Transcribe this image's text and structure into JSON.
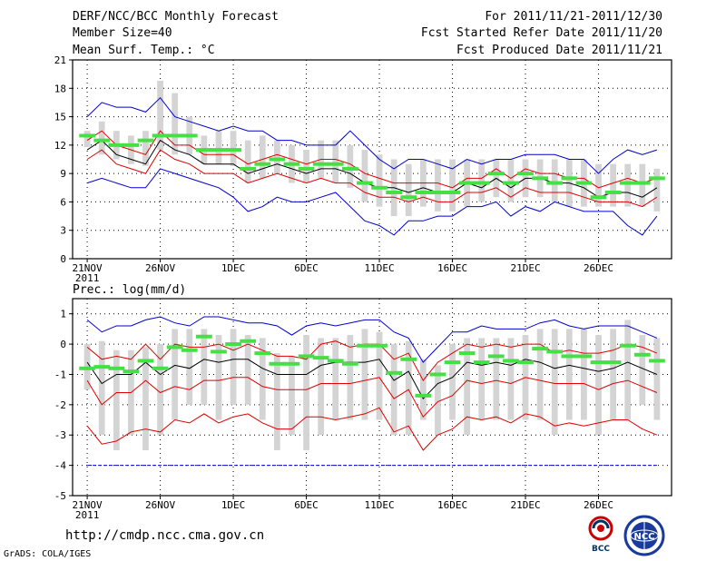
{
  "header": {
    "title": "DERF/NCC/BCC Monthly Forecast",
    "member_size": "Member Size=40",
    "variable": "Mean Surf. Temp.: °C",
    "period": "For 2011/11/21-2011/12/30",
    "started": "Fcst Started Refer Date 2011/11/20",
    "produced": "Fcst Produced Date 2011/11/21"
  },
  "footer": {
    "url": "http://cmdp.ncc.cma.gov.cn",
    "credit": "GrADS: COLA/IGES",
    "logo_left_text": "BCC",
    "logo_right_text": "NCC"
  },
  "colors": {
    "box": "#d4d4d4",
    "median": "#44e044",
    "mean": "#000000",
    "std": "#e00000",
    "extreme": "#0000d0",
    "grid": "#000000"
  },
  "chart_data": [
    {
      "type": "box",
      "title": "Mean Surf. Temp.: °C",
      "ylim": [
        0,
        21
      ],
      "yticks": [
        0,
        3,
        6,
        9,
        12,
        15,
        18,
        21
      ],
      "xticks": [
        {
          "day": 1,
          "label": "21NOV",
          "sub": "2011"
        },
        {
          "day": 6,
          "label": "26NOV",
          "sub": ""
        },
        {
          "day": 11,
          "label": "1DEC",
          "sub": ""
        },
        {
          "day": 16,
          "label": "6DEC",
          "sub": ""
        },
        {
          "day": 21,
          "label": "11DEC",
          "sub": ""
        },
        {
          "day": 26,
          "label": "16DEC",
          "sub": ""
        },
        {
          "day": 31,
          "label": "21DEC",
          "sub": ""
        },
        {
          "day": 36,
          "label": "26DEC",
          "sub": ""
        }
      ],
      "days": [
        1,
        2,
        3,
        4,
        5,
        6,
        7,
        8,
        9,
        10,
        11,
        12,
        13,
        14,
        15,
        16,
        17,
        18,
        19,
        20,
        21,
        22,
        23,
        24,
        25,
        26,
        27,
        28,
        29,
        30,
        31,
        32,
        33,
        34,
        35,
        36,
        37,
        38,
        39,
        40
      ],
      "box_low": [
        11.8,
        11.0,
        10.5,
        10.0,
        9.8,
        11.5,
        11.0,
        11.0,
        10.0,
        10.0,
        9.8,
        8.0,
        8.5,
        9.0,
        8.0,
        8.0,
        8.5,
        8.0,
        7.5,
        6.0,
        5.5,
        4.5,
        4.5,
        5.5,
        5.0,
        5.0,
        5.5,
        6.0,
        6.5,
        6.0,
        6.5,
        6.5,
        6.0,
        5.5,
        5.5,
        5.5,
        5.5,
        5.5,
        5.5,
        5.0
      ],
      "box_high": [
        13.5,
        14.5,
        13.5,
        13.0,
        13.5,
        18.8,
        17.5,
        15.0,
        13.0,
        13.5,
        13.5,
        12.5,
        13.0,
        12.5,
        12.0,
        11.5,
        12.5,
        12.5,
        12.0,
        11.5,
        11.0,
        10.5,
        10.0,
        10.5,
        10.5,
        10.5,
        10.5,
        10.5,
        10.5,
        10.5,
        10.5,
        10.5,
        10.5,
        10.5,
        10.5,
        10.0,
        10.0,
        10.0,
        10.0,
        9.5
      ],
      "median": [
        13.0,
        12.5,
        12.0,
        12.0,
        12.5,
        13.0,
        13.0,
        13.0,
        11.5,
        11.5,
        11.5,
        9.5,
        10.0,
        10.5,
        10.0,
        9.5,
        10.0,
        10.0,
        9.5,
        8.0,
        7.5,
        7.0,
        6.5,
        7.0,
        7.0,
        7.0,
        8.0,
        8.0,
        9.0,
        8.0,
        9.0,
        8.5,
        8.0,
        8.5,
        8.0,
        6.5,
        7.0,
        8.0,
        8.0,
        8.5
      ],
      "series": [
        {
          "name": "max",
          "role": "extreme",
          "values": [
            15.0,
            16.5,
            16.0,
            16.0,
            15.5,
            17.0,
            15.0,
            14.5,
            14.0,
            13.5,
            14.0,
            13.5,
            13.5,
            12.5,
            12.5,
            12.0,
            12.0,
            12.0,
            13.5,
            12.0,
            10.5,
            9.5,
            10.5,
            10.5,
            10.0,
            9.5,
            10.5,
            10.0,
            10.5,
            10.5,
            11.0,
            11.0,
            11.0,
            10.5,
            10.5,
            9.0,
            10.5,
            11.5,
            11.0,
            11.5
          ]
        },
        {
          "name": "mean+std",
          "role": "std",
          "values": [
            12.5,
            13.5,
            12.0,
            11.5,
            11.0,
            13.5,
            12.0,
            12.0,
            11.0,
            11.0,
            11.0,
            10.0,
            10.5,
            11.0,
            10.5,
            10.0,
            10.5,
            10.5,
            10.0,
            9.0,
            8.5,
            8.0,
            8.0,
            8.0,
            8.0,
            7.5,
            8.5,
            8.5,
            9.5,
            8.5,
            9.5,
            9.0,
            9.0,
            8.5,
            8.5,
            7.5,
            8.0,
            8.5,
            8.0,
            8.5
          ]
        },
        {
          "name": "mean",
          "role": "mean",
          "values": [
            11.5,
            12.5,
            11.0,
            10.5,
            10.0,
            12.5,
            11.5,
            11.0,
            10.0,
            10.0,
            10.0,
            9.0,
            9.5,
            10.0,
            9.5,
            9.0,
            9.5,
            9.5,
            9.0,
            8.0,
            7.5,
            7.5,
            7.0,
            7.5,
            7.0,
            7.0,
            8.0,
            7.5,
            8.5,
            7.5,
            8.5,
            8.5,
            8.0,
            8.0,
            7.5,
            6.5,
            7.0,
            7.0,
            6.5,
            7.5
          ]
        },
        {
          "name": "mean-std",
          "role": "std",
          "values": [
            10.5,
            11.5,
            10.0,
            9.5,
            9.0,
            11.5,
            10.5,
            10.0,
            9.0,
            9.0,
            9.0,
            8.0,
            8.5,
            9.0,
            8.5,
            8.0,
            8.5,
            8.0,
            8.0,
            7.0,
            6.5,
            6.5,
            6.0,
            6.5,
            6.0,
            6.0,
            7.0,
            7.0,
            7.5,
            6.5,
            7.5,
            7.0,
            7.0,
            7.0,
            6.5,
            6.0,
            6.0,
            6.0,
            5.5,
            6.5
          ]
        },
        {
          "name": "min",
          "role": "extreme",
          "values": [
            8.0,
            8.5,
            8.0,
            7.5,
            7.5,
            9.5,
            9.0,
            8.5,
            8.0,
            7.5,
            6.5,
            5.0,
            5.5,
            6.5,
            6.0,
            6.0,
            6.5,
            7.0,
            5.5,
            4.0,
            3.5,
            2.5,
            4.0,
            4.0,
            4.5,
            4.5,
            5.5,
            5.5,
            6.0,
            4.5,
            5.5,
            5.0,
            6.0,
            5.5,
            5.0,
            5.0,
            5.0,
            3.5,
            2.5,
            4.5
          ]
        }
      ]
    },
    {
      "type": "box",
      "title": "Prec.: log(mm/d)",
      "ylim": [
        -5,
        1.5
      ],
      "yticks": [
        -5,
        -4,
        -3,
        -2,
        -1,
        0,
        1
      ],
      "xticks": [
        {
          "day": 1,
          "label": "21NOV",
          "sub": "2011"
        },
        {
          "day": 6,
          "label": "26NOV",
          "sub": ""
        },
        {
          "day": 11,
          "label": "1DEC",
          "sub": ""
        },
        {
          "day": 16,
          "label": "6DEC",
          "sub": ""
        },
        {
          "day": 21,
          "label": "11DEC",
          "sub": ""
        },
        {
          "day": 26,
          "label": "16DEC",
          "sub": ""
        },
        {
          "day": 31,
          "label": "21DEC",
          "sub": ""
        },
        {
          "day": 36,
          "label": "26DEC",
          "sub": ""
        }
      ],
      "days": [
        1,
        2,
        3,
        4,
        5,
        6,
        7,
        8,
        9,
        10,
        11,
        12,
        13,
        14,
        15,
        16,
        17,
        18,
        19,
        20,
        21,
        22,
        23,
        24,
        25,
        26,
        27,
        28,
        29,
        30,
        31,
        32,
        33,
        34,
        35,
        36,
        37,
        38,
        39,
        40
      ],
      "box_low": [
        -1.5,
        -3.0,
        -3.5,
        -3.0,
        -3.5,
        -3.0,
        -2.5,
        -2.0,
        -2.0,
        -2.5,
        -2.0,
        -2.0,
        -2.5,
        -3.5,
        -3.0,
        -3.5,
        -3.0,
        -2.5,
        -2.5,
        -2.5,
        -2.5,
        -3.0,
        -3.0,
        -2.5,
        -3.0,
        -2.5,
        -3.0,
        -2.5,
        -2.5,
        -2.5,
        -2.5,
        -2.5,
        -3.0,
        -2.5,
        -2.5,
        -3.0,
        -2.5,
        -2.5,
        -2.0,
        -2.5
      ],
      "box_high": [
        0.0,
        0.1,
        -0.2,
        -0.2,
        -0.1,
        0.0,
        0.5,
        0.5,
        0.5,
        0.3,
        0.5,
        0.3,
        0.2,
        -0.3,
        -0.4,
        0.3,
        0.2,
        0.2,
        0.3,
        0.5,
        0.4,
        0.0,
        0.1,
        -0.5,
        -0.7,
        0.0,
        0.2,
        0.2,
        0.2,
        0.2,
        0.3,
        0.5,
        0.5,
        0.5,
        0.5,
        0.3,
        0.5,
        0.8,
        0.3,
        0.2
      ],
      "median": [
        -0.8,
        -0.75,
        -0.8,
        -0.9,
        -0.55,
        -0.8,
        -0.1,
        -0.2,
        0.25,
        -0.25,
        0.0,
        0.1,
        -0.3,
        -0.65,
        -0.65,
        -0.4,
        -0.45,
        -0.55,
        -0.65,
        -0.05,
        -0.05,
        -0.95,
        -0.5,
        -1.7,
        -1.0,
        -0.6,
        -0.3,
        -0.6,
        -0.4,
        -0.55,
        -0.6,
        -0.15,
        -0.25,
        -0.4,
        -0.4,
        -0.6,
        -0.6,
        -0.05,
        -0.35,
        -0.55
      ],
      "series": [
        {
          "name": "max",
          "role": "extreme",
          "values": [
            0.8,
            0.4,
            0.6,
            0.6,
            0.8,
            0.9,
            0.7,
            0.6,
            0.9,
            0.9,
            0.8,
            0.7,
            0.7,
            0.6,
            0.3,
            0.6,
            0.7,
            0.6,
            0.7,
            0.8,
            0.8,
            0.4,
            0.2,
            -0.6,
            -0.1,
            0.4,
            0.4,
            0.6,
            0.5,
            0.5,
            0.5,
            0.7,
            0.8,
            0.6,
            0.5,
            0.6,
            0.6,
            0.6,
            0.4,
            0.2
          ]
        },
        {
          "name": "mean+std",
          "role": "std",
          "values": [
            -0.1,
            -0.5,
            -0.4,
            -0.5,
            0.0,
            -0.5,
            0.0,
            -0.1,
            -0.1,
            0.0,
            -0.2,
            0.0,
            -0.2,
            -0.4,
            -0.4,
            -0.5,
            0.0,
            0.1,
            -0.1,
            0.0,
            0.0,
            -0.5,
            -0.3,
            -1.2,
            -0.6,
            -0.3,
            0.0,
            -0.1,
            0.0,
            -0.1,
            0.0,
            0.0,
            -0.3,
            -0.2,
            -0.3,
            -0.3,
            -0.2,
            0.0,
            -0.1,
            -0.3
          ]
        },
        {
          "name": "mean",
          "role": "mean",
          "values": [
            -0.6,
            -1.3,
            -1.0,
            -1.0,
            -0.6,
            -1.0,
            -0.7,
            -0.8,
            -0.5,
            -0.6,
            -0.5,
            -0.5,
            -0.8,
            -1.0,
            -1.0,
            -1.0,
            -0.7,
            -0.6,
            -0.6,
            -0.6,
            -0.5,
            -1.2,
            -0.9,
            -1.8,
            -1.3,
            -1.1,
            -0.6,
            -0.7,
            -0.6,
            -0.7,
            -0.5,
            -0.6,
            -0.8,
            -0.7,
            -0.8,
            -0.9,
            -0.8,
            -0.6,
            -0.8,
            -1.0
          ]
        },
        {
          "name": "mean-std",
          "role": "std",
          "values": [
            -1.2,
            -2.0,
            -1.6,
            -1.6,
            -1.2,
            -1.6,
            -1.4,
            -1.5,
            -1.2,
            -1.2,
            -1.1,
            -1.1,
            -1.4,
            -1.5,
            -1.5,
            -1.5,
            -1.3,
            -1.3,
            -1.3,
            -1.2,
            -1.1,
            -1.8,
            -1.5,
            -2.4,
            -1.9,
            -1.7,
            -1.2,
            -1.3,
            -1.2,
            -1.3,
            -1.1,
            -1.2,
            -1.3,
            -1.3,
            -1.3,
            -1.5,
            -1.3,
            -1.2,
            -1.4,
            -1.6
          ]
        },
        {
          "name": "mean-2std",
          "role": "std",
          "values": [
            -2.7,
            -3.3,
            -3.2,
            -2.9,
            -2.8,
            -2.9,
            -2.5,
            -2.6,
            -2.3,
            -2.6,
            -2.4,
            -2.3,
            -2.6,
            -2.8,
            -2.8,
            -2.4,
            -2.4,
            -2.5,
            -2.4,
            -2.3,
            -2.1,
            -2.9,
            -2.7,
            -3.5,
            -3.0,
            -2.8,
            -2.4,
            -2.5,
            -2.4,
            -2.6,
            -2.3,
            -2.4,
            -2.7,
            -2.6,
            -2.7,
            -2.6,
            -2.5,
            -2.5,
            -2.8,
            -3.0
          ]
        },
        {
          "name": "min",
          "role": "extreme",
          "values": [
            -4,
            -4,
            -4,
            -4,
            -4,
            -4,
            -4,
            -4,
            -4,
            -4,
            -4,
            -4,
            -4,
            -4,
            -4,
            -4,
            -4,
            -4,
            -4,
            -4,
            -4,
            -4,
            -4,
            -4,
            -4,
            -4,
            -4,
            -4,
            -4,
            -4,
            -4,
            -4,
            -4,
            -4,
            -4,
            -4,
            -4,
            -4,
            -4,
            -4
          ]
        }
      ]
    }
  ]
}
